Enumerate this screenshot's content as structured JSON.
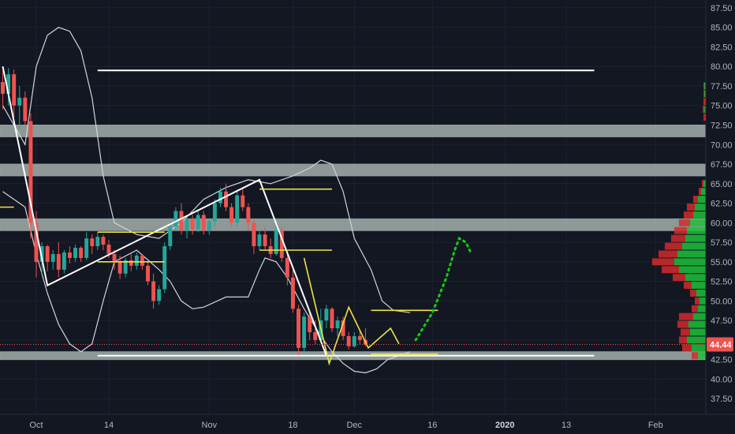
{
  "colors": {
    "background": "#131722",
    "grid": "#1e2230",
    "up": "#26a69a",
    "down": "#ef5350",
    "zone": "#b7c4bf",
    "bands": "#d1d4dc",
    "trendlines": "#ffffff",
    "levels_yellow": "#f0e442",
    "projection": "#17c917",
    "price_tag": "#ef5350",
    "volume_up": "#1fbf3a",
    "volume_down": "#d42a2a"
  },
  "price_tag": {
    "label": "44.44"
  },
  "chart_data": {
    "type": "candlestick",
    "ylim": [
      35.5,
      88.5
    ],
    "y_ticks": [
      "37.50",
      "40.00",
      "42.50",
      "45.00",
      "47.50",
      "50.00",
      "52.50",
      "55.00",
      "57.50",
      "60.00",
      "62.50",
      "65.00",
      "67.50",
      "70.00",
      "72.50",
      "75.00",
      "77.50",
      "80.00",
      "82.50",
      "85.00",
      "87.50"
    ],
    "x_ticks": [
      {
        "label": "Oct",
        "day": 6
      },
      {
        "label": "14",
        "day": 19
      },
      {
        "label": "Nov",
        "day": 37
      },
      {
        "label": "18",
        "day": 52
      },
      {
        "label": "Dec",
        "day": 63
      },
      {
        "label": "16",
        "day": 77
      },
      {
        "label": "2020",
        "day": 90,
        "bold": true
      },
      {
        "label": "13",
        "day": 101
      },
      {
        "label": "Feb",
        "day": 117
      }
    ],
    "xlim": [
      -0.5,
      126
    ],
    "last_price": 44.44,
    "candles": [
      [
        78.0,
        79.5,
        74.5,
        76.5
      ],
      [
        76.5,
        79.8,
        75.0,
        79.0
      ],
      [
        79.0,
        79.6,
        73.5,
        75.0
      ],
      [
        75.0,
        77.5,
        72.0,
        76.0
      ],
      [
        76.0,
        76.8,
        72.5,
        73.0
      ],
      [
        73.0,
        74.0,
        58.0,
        60.0
      ],
      [
        60.0,
        61.5,
        53.0,
        55.0
      ],
      [
        55.0,
        57.5,
        53.5,
        57.0
      ],
      [
        57.0,
        57.2,
        53.8,
        55.0
      ],
      [
        55.0,
        56.5,
        54.0,
        56.0
      ],
      [
        56.0,
        57.5,
        53.0,
        54.0
      ],
      [
        54.0,
        56.5,
        53.5,
        56.2
      ],
      [
        56.2,
        57.0,
        54.8,
        55.5
      ],
      [
        55.5,
        57.2,
        55.0,
        56.8
      ],
      [
        56.8,
        57.0,
        55.0,
        55.5
      ],
      [
        55.5,
        58.8,
        55.2,
        58.0
      ],
      [
        58.0,
        58.5,
        56.0,
        57.0
      ],
      [
        57.0,
        58.8,
        56.5,
        58.2
      ],
      [
        58.2,
        58.5,
        56.5,
        57.2
      ],
      [
        57.2,
        57.8,
        55.5,
        56.0
      ],
      [
        56.0,
        56.5,
        54.0,
        55.0
      ],
      [
        55.0,
        55.8,
        52.8,
        53.5
      ],
      [
        53.5,
        55.5,
        53.0,
        55.2
      ],
      [
        55.2,
        56.0,
        53.8,
        54.5
      ],
      [
        54.5,
        56.2,
        54.0,
        55.8
      ],
      [
        55.8,
        56.0,
        54.0,
        54.5
      ],
      [
        54.5,
        55.0,
        52.0,
        52.5
      ],
      [
        52.5,
        53.5,
        49.0,
        50.0
      ],
      [
        50.0,
        52.0,
        49.5,
        51.5
      ],
      [
        51.5,
        57.5,
        51.0,
        57.0
      ],
      [
        57.0,
        60.0,
        56.5,
        59.5
      ],
      [
        59.5,
        62.0,
        59.0,
        61.5
      ],
      [
        61.5,
        62.5,
        58.5,
        59.0
      ],
      [
        59.0,
        61.0,
        58.0,
        60.5
      ],
      [
        60.5,
        61.0,
        58.5,
        59.2
      ],
      [
        59.2,
        61.5,
        58.8,
        61.0
      ],
      [
        61.0,
        61.5,
        58.5,
        59.0
      ],
      [
        59.0,
        60.5,
        58.5,
        60.2
      ],
      [
        60.2,
        63.0,
        59.5,
        62.5
      ],
      [
        62.5,
        64.5,
        62.0,
        64.0
      ],
      [
        64.0,
        65.0,
        61.5,
        62.0
      ],
      [
        62.0,
        62.5,
        59.5,
        60.0
      ],
      [
        60.0,
        64.0,
        59.5,
        63.5
      ],
      [
        63.5,
        64.5,
        61.5,
        62.0
      ],
      [
        62.0,
        62.5,
        59.0,
        60.0
      ],
      [
        60.0,
        60.5,
        56.0,
        57.0
      ],
      [
        57.0,
        59.0,
        56.5,
        58.5
      ],
      [
        58.5,
        59.5,
        56.5,
        57.0
      ],
      [
        57.0,
        58.0,
        55.5,
        56.0
      ],
      [
        56.0,
        59.5,
        55.8,
        59.0
      ],
      [
        59.0,
        59.5,
        55.0,
        55.5
      ],
      [
        55.5,
        56.0,
        52.0,
        53.0
      ],
      [
        53.0,
        54.5,
        48.5,
        49.0
      ],
      [
        49.0,
        49.5,
        43.0,
        44.0
      ],
      [
        44.0,
        48.5,
        43.5,
        48.0
      ],
      [
        48.0,
        48.5,
        45.0,
        46.0
      ],
      [
        46.0,
        47.5,
        44.5,
        45.0
      ],
      [
        45.0,
        49.0,
        44.8,
        47.5
      ],
      [
        47.5,
        49.5,
        46.5,
        49.0
      ],
      [
        49.0,
        49.2,
        46.0,
        46.5
      ],
      [
        46.5,
        48.0,
        45.5,
        47.5
      ],
      [
        47.5,
        48.0,
        45.0,
        45.5
      ],
      [
        45.5,
        46.0,
        43.8,
        44.2
      ],
      [
        44.2,
        46.0,
        44.0,
        45.5
      ],
      [
        45.5,
        46.2,
        44.5,
        45.0
      ],
      [
        45.0,
        46.5,
        44.2,
        44.4
      ]
    ],
    "zones": [
      [
        71.0,
        72.5
      ],
      [
        66.0,
        67.5
      ],
      [
        59.0,
        60.5
      ],
      [
        42.5,
        43.5
      ]
    ],
    "trendlines": [
      {
        "points": [
          [
            0,
            80.0
          ],
          [
            8,
            52.0
          ],
          [
            46,
            65.5
          ],
          [
            58,
            43.0
          ]
        ],
        "color": "trendlines"
      },
      {
        "points": [
          [
            17,
            79.5
          ],
          [
            106,
            79.5
          ]
        ],
        "color": "trendlines"
      },
      {
        "points": [
          [
            17,
            43.0
          ],
          [
            106,
            43.0
          ]
        ],
        "color": "trendlines"
      }
    ],
    "yellow_levels": [
      {
        "points": [
          [
            -1,
            62.0
          ],
          [
            2,
            62.0
          ]
        ]
      },
      {
        "points": [
          [
            17,
            58.8
          ],
          [
            29,
            58.8
          ]
        ]
      },
      {
        "points": [
          [
            17,
            55.0
          ],
          [
            29,
            55.0
          ]
        ]
      },
      {
        "points": [
          [
            46,
            64.3
          ],
          [
            59,
            64.3
          ]
        ]
      },
      {
        "points": [
          [
            46,
            56.5
          ],
          [
            59,
            56.5
          ]
        ]
      },
      {
        "points": [
          [
            66,
            48.8
          ],
          [
            78,
            48.8
          ]
        ]
      },
      {
        "points": [
          [
            66,
            43.2
          ],
          [
            78,
            43.2
          ]
        ]
      },
      {
        "points": [
          [
            54,
            55.5
          ],
          [
            58.5,
            42.0
          ],
          [
            62,
            49.2
          ],
          [
            65.5,
            44.0
          ],
          [
            69.5,
            46.5
          ],
          [
            71,
            44.5
          ]
        ]
      }
    ],
    "projection": [
      [
        74,
        45.0
      ],
      [
        77,
        48.5
      ],
      [
        79.5,
        53.0
      ],
      [
        81,
        56.5
      ],
      [
        81.8,
        58.0
      ],
      [
        83,
        57.5
      ],
      [
        84,
        56.0
      ]
    ],
    "bb_upper": [
      [
        0,
        75
      ],
      [
        4,
        70
      ],
      [
        6,
        80
      ],
      [
        8,
        84
      ],
      [
        10,
        85
      ],
      [
        12,
        84.5
      ],
      [
        14,
        82
      ],
      [
        16,
        76
      ],
      [
        18,
        66
      ],
      [
        20,
        60
      ],
      [
        24,
        58.5
      ],
      [
        28,
        58.0
      ],
      [
        32,
        60
      ],
      [
        36,
        63
      ],
      [
        40,
        64.5
      ],
      [
        44,
        65.5
      ],
      [
        48,
        65
      ],
      [
        52,
        66
      ],
      [
        55,
        67.0
      ],
      [
        57,
        68.0
      ],
      [
        59,
        67.5
      ],
      [
        61,
        64
      ],
      [
        63,
        58.0
      ],
      [
        66,
        54
      ],
      [
        68,
        50
      ],
      [
        70,
        48.8
      ],
      [
        73,
        48.5
      ]
    ],
    "bb_lower": [
      [
        0,
        64
      ],
      [
        2,
        63
      ],
      [
        4,
        62
      ],
      [
        6,
        56
      ],
      [
        8,
        51
      ],
      [
        10,
        47
      ],
      [
        12,
        44.5
      ],
      [
        14,
        43.5
      ],
      [
        16,
        44.5
      ],
      [
        18,
        50
      ],
      [
        20,
        55.0
      ],
      [
        24,
        56.5
      ],
      [
        28,
        54.0
      ],
      [
        30,
        52.5
      ],
      [
        32,
        50.0
      ],
      [
        34,
        49.0
      ],
      [
        36,
        49.2
      ],
      [
        40,
        50.5
      ],
      [
        44,
        50.5
      ],
      [
        46,
        54
      ],
      [
        47,
        55.5
      ],
      [
        49,
        55
      ],
      [
        51,
        53
      ],
      [
        54,
        49
      ],
      [
        57,
        45.5
      ],
      [
        59,
        43.5
      ],
      [
        61,
        42.0
      ],
      [
        63,
        41.0
      ],
      [
        65,
        40.8
      ],
      [
        67,
        41.3
      ],
      [
        69,
        42.5
      ],
      [
        71,
        43.0
      ],
      [
        73,
        43.5
      ]
    ],
    "volume_profile": [
      {
        "price": 77.5,
        "up": 2,
        "down": 1
      },
      {
        "price": 76.5,
        "up": 2,
        "down": 1
      },
      {
        "price": 75.5,
        "up": 1,
        "down": 2
      },
      {
        "price": 74.5,
        "up": 2,
        "down": 2
      },
      {
        "price": 73.5,
        "up": 1,
        "down": 2
      },
      {
        "price": 65.0,
        "up": 3,
        "down": 2
      },
      {
        "price": 64.0,
        "up": 6,
        "down": 3
      },
      {
        "price": 63.0,
        "up": 10,
        "down": 6
      },
      {
        "price": 62.0,
        "up": 14,
        "down": 10
      },
      {
        "price": 61.0,
        "up": 16,
        "down": 12
      },
      {
        "price": 60.0,
        "up": 20,
        "down": 14
      },
      {
        "price": 59.0,
        "up": 24,
        "down": 16
      },
      {
        "price": 58.0,
        "up": 26,
        "down": 18
      },
      {
        "price": 57.0,
        "up": 30,
        "down": 22
      },
      {
        "price": 56.0,
        "up": 36,
        "down": 24
      },
      {
        "price": 55.0,
        "up": 40,
        "down": 28
      },
      {
        "price": 54.0,
        "up": 34,
        "down": 22
      },
      {
        "price": 53.0,
        "up": 26,
        "down": 16
      },
      {
        "price": 52.0,
        "up": 18,
        "down": 10
      },
      {
        "price": 51.0,
        "up": 12,
        "down": 8
      },
      {
        "price": 50.0,
        "up": 8,
        "down": 6
      },
      {
        "price": 49.0,
        "up": 10,
        "down": 8
      },
      {
        "price": 48.0,
        "up": 16,
        "down": 18
      },
      {
        "price": 47.0,
        "up": 22,
        "down": 14
      },
      {
        "price": 46.0,
        "up": 20,
        "down": 12
      },
      {
        "price": 45.0,
        "up": 24,
        "down": 10
      },
      {
        "price": 44.0,
        "up": 18,
        "down": 12
      },
      {
        "price": 43.0,
        "up": 10,
        "down": 8
      }
    ]
  }
}
